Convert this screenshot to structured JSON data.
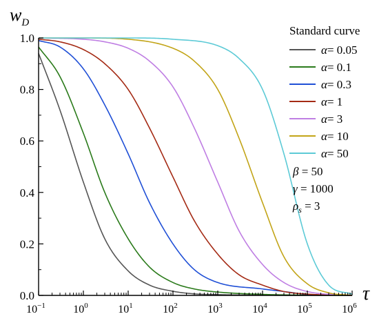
{
  "chart_data": {
    "type": "line",
    "title": "",
    "xlabel": "τ",
    "ylabel": "w",
    "ylabel_sub": "D",
    "x_scale": "log",
    "xlim": [
      0.1,
      1000000
    ],
    "ylim": [
      0,
      1.0
    ],
    "x_ticks": [
      {
        "base": "10",
        "exp": "−1",
        "value": 0.1
      },
      {
        "base": "10",
        "exp": "0",
        "value": 1
      },
      {
        "base": "10",
        "exp": "1",
        "value": 10
      },
      {
        "base": "10",
        "exp": "2",
        "value": 100
      },
      {
        "base": "10",
        "exp": "3",
        "value": 1000
      },
      {
        "base": "10",
        "exp": "4",
        "value": 10000
      },
      {
        "base": "10",
        "exp": "5",
        "value": 100000
      },
      {
        "base": "10",
        "exp": "6",
        "value": 1000000
      }
    ],
    "y_ticks": [
      {
        "label": "0.0",
        "value": 0.0
      },
      {
        "label": "0.2",
        "value": 0.2
      },
      {
        "label": "0.4",
        "value": 0.4
      },
      {
        "label": "0.6",
        "value": 0.6
      },
      {
        "label": "0.8",
        "value": 0.8
      },
      {
        "label": "1.0",
        "value": 1.0
      }
    ],
    "grid": false,
    "legend": {
      "title": "Standard curve",
      "placement": "top-right"
    },
    "series": [
      {
        "name": "α = 0.05",
        "label_symbol": "α",
        "label_value": "= 0.05",
        "color": "#555555",
        "x": [
          0.1,
          0.3,
          1,
          3,
          10,
          30,
          100,
          300,
          1000,
          10000,
          100000,
          1000000
        ],
        "y": [
          0.94,
          0.72,
          0.44,
          0.22,
          0.095,
          0.04,
          0.016,
          0.006,
          0.003,
          0.001,
          0.0,
          0.0
        ]
      },
      {
        "name": "α = 0.1",
        "label_symbol": "α",
        "label_value": "= 0.1",
        "color": "#2a7a1a",
        "x": [
          0.1,
          0.3,
          1,
          3,
          10,
          30,
          100,
          300,
          1000,
          10000,
          100000,
          1000000
        ],
        "y": [
          0.965,
          0.85,
          0.63,
          0.4,
          0.22,
          0.11,
          0.05,
          0.025,
          0.013,
          0.004,
          0.001,
          0.0
        ]
      },
      {
        "name": "α = 0.3",
        "label_symbol": "α",
        "label_value": "= 0.3",
        "color": "#1f4fd6",
        "x": [
          0.1,
          0.3,
          1,
          3,
          10,
          30,
          100,
          300,
          1000,
          10000,
          30000,
          100000,
          1000000
        ],
        "y": [
          0.99,
          0.965,
          0.88,
          0.74,
          0.55,
          0.36,
          0.2,
          0.1,
          0.05,
          0.025,
          0.015,
          0.004,
          0.0
        ]
      },
      {
        "name": "α = 1",
        "label_symbol": "α",
        "label_value": "= 1",
        "color": "#a42a14",
        "x": [
          0.1,
          0.3,
          1,
          3,
          10,
          30,
          100,
          300,
          1000,
          3000,
          10000,
          30000,
          100000,
          1000000
        ],
        "y": [
          0.995,
          0.985,
          0.955,
          0.9,
          0.8,
          0.65,
          0.46,
          0.29,
          0.16,
          0.08,
          0.04,
          0.015,
          0.005,
          0.0
        ]
      },
      {
        "name": "α = 3",
        "label_symbol": "α",
        "label_value": "= 3",
        "color": "#bf7ee3",
        "x": [
          0.1,
          1,
          3,
          10,
          30,
          100,
          300,
          1000,
          3000,
          10000,
          30000,
          100000,
          1000000
        ],
        "y": [
          1.0,
          0.995,
          0.985,
          0.96,
          0.91,
          0.81,
          0.65,
          0.44,
          0.25,
          0.12,
          0.05,
          0.015,
          0.0
        ]
      },
      {
        "name": "α = 10",
        "label_symbol": "α",
        "label_value": "= 10",
        "color": "#c2a417",
        "x": [
          0.1,
          1,
          10,
          100,
          300,
          1000,
          3000,
          10000,
          30000,
          100000,
          300000,
          1000000
        ],
        "y": [
          1.0,
          1.0,
          0.995,
          0.96,
          0.91,
          0.8,
          0.61,
          0.36,
          0.15,
          0.045,
          0.01,
          0.0
        ]
      },
      {
        "name": "α = 50",
        "label_symbol": "α",
        "label_value": "= 50",
        "color": "#5ccad6",
        "x": [
          0.1,
          1,
          10,
          100,
          1000,
          3000,
          10000,
          30000,
          100000,
          300000,
          1000000
        ],
        "y": [
          1.0,
          1.0,
          1.0,
          0.995,
          0.97,
          0.92,
          0.8,
          0.55,
          0.2,
          0.04,
          0.005
        ]
      }
    ],
    "annotations": [
      {
        "symbol": "β",
        "sub": "",
        "text": " = 50"
      },
      {
        "symbol": "γ",
        "sub": "",
        "text": " = 1000"
      },
      {
        "symbol": "ρ",
        "sub": "s",
        "text": " = 3"
      }
    ]
  }
}
